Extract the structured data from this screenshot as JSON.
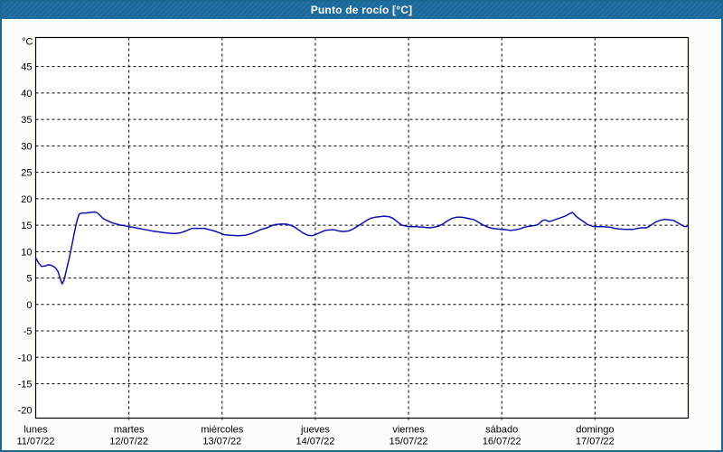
{
  "window": {
    "title": "Punto de rocío [°C]"
  },
  "colors": {
    "titlebar_bg": "#1b699c",
    "titlebar_text": "#ffffff",
    "window_border": "#1d6795",
    "content_bg": "#fbfdf9",
    "plot_bg": "#ffffff",
    "grid": "#000000",
    "axis": "#000000",
    "line": "#0f0fb4"
  },
  "chart_data": {
    "type": "line",
    "title": "Punto de rocío [°C]",
    "xlabel": "",
    "ylabel": "°C",
    "ylim": [
      -21.5,
      50.5
    ],
    "yticks": [
      45,
      40,
      35,
      30,
      25,
      20,
      15,
      10,
      5,
      0,
      -5,
      -10,
      -15,
      -20
    ],
    "yticks_without_gridline": [
      -20
    ],
    "grid": "dashed",
    "legend_position": "none",
    "x_total_hours": 168,
    "x_days": [
      {
        "name": "lunes",
        "date": "11/07/22"
      },
      {
        "name": "martes",
        "date": "12/07/22"
      },
      {
        "name": "miércoles",
        "date": "13/07/22"
      },
      {
        "name": "jueves",
        "date": "14/07/22"
      },
      {
        "name": "viernes",
        "date": "15/07/22"
      },
      {
        "name": "sábado",
        "date": "16/07/22"
      },
      {
        "name": "domingo",
        "date": "17/07/22"
      }
    ],
    "series": [
      {
        "name": "Punto de rocío",
        "color": "#0f0fb4",
        "points_hours_value": [
          [
            0,
            8.8
          ],
          [
            0.7,
            7.9
          ],
          [
            1.5,
            7.2
          ],
          [
            2.5,
            7.3
          ],
          [
            3.2,
            7.5
          ],
          [
            4,
            7.4
          ],
          [
            5,
            7.0
          ],
          [
            5.7,
            6.3
          ],
          [
            6.3,
            4.9
          ],
          [
            6.8,
            3.9
          ],
          [
            7.3,
            4.6
          ],
          [
            8,
            6.8
          ],
          [
            8.7,
            9.0
          ],
          [
            9.4,
            11.5
          ],
          [
            10,
            13.8
          ],
          [
            10.6,
            15.8
          ],
          [
            11.2,
            17.1
          ],
          [
            12,
            17.3
          ],
          [
            13,
            17.3
          ],
          [
            14,
            17.4
          ],
          [
            15,
            17.5
          ],
          [
            15.7,
            17.4
          ],
          [
            16.5,
            16.9
          ],
          [
            17.3,
            16.3
          ],
          [
            18.3,
            15.9
          ],
          [
            19.5,
            15.5
          ],
          [
            20.8,
            15.2
          ],
          [
            22,
            15.0
          ],
          [
            23,
            14.9
          ],
          [
            24,
            14.7
          ],
          [
            25,
            14.6
          ],
          [
            26.5,
            14.4
          ],
          [
            28,
            14.2
          ],
          [
            30,
            13.9
          ],
          [
            32,
            13.7
          ],
          [
            33.8,
            13.5
          ],
          [
            35.5,
            13.4
          ],
          [
            37,
            13.5
          ],
          [
            38.3,
            13.8
          ],
          [
            39.3,
            14.1
          ],
          [
            40.3,
            14.4
          ],
          [
            42,
            14.4
          ],
          [
            43.5,
            14.4
          ],
          [
            44.5,
            14.2
          ],
          [
            46,
            13.9
          ],
          [
            47.5,
            13.5
          ],
          [
            48.5,
            13.2
          ],
          [
            50,
            13.1
          ],
          [
            52,
            13.0
          ],
          [
            54,
            13.1
          ],
          [
            55.5,
            13.4
          ],
          [
            56.5,
            13.7
          ],
          [
            58,
            14.2
          ],
          [
            59.5,
            14.5
          ],
          [
            60.5,
            14.8
          ],
          [
            61.5,
            15.1
          ],
          [
            63,
            15.2
          ],
          [
            64.5,
            15.2
          ],
          [
            65.5,
            15.0
          ],
          [
            66.5,
            14.7
          ],
          [
            67.5,
            14.2
          ],
          [
            68.7,
            13.6
          ],
          [
            70,
            13.1
          ],
          [
            71.2,
            13.0
          ],
          [
            72.3,
            13.3
          ],
          [
            73.5,
            13.7
          ],
          [
            74.5,
            14.0
          ],
          [
            76,
            14.1
          ],
          [
            77,
            14.1
          ],
          [
            78,
            13.9
          ],
          [
            79.3,
            13.8
          ],
          [
            80.5,
            13.9
          ],
          [
            81.5,
            14.2
          ],
          [
            82.7,
            14.7
          ],
          [
            84,
            15.3
          ],
          [
            85,
            15.8
          ],
          [
            86.2,
            16.3
          ],
          [
            87.4,
            16.5
          ],
          [
            88.5,
            16.6
          ],
          [
            89.7,
            16.7
          ],
          [
            91,
            16.6
          ],
          [
            92,
            16.3
          ],
          [
            93.2,
            15.6
          ],
          [
            94.3,
            15.0
          ],
          [
            95.5,
            14.8
          ],
          [
            96.7,
            14.7
          ],
          [
            98,
            14.7
          ],
          [
            100,
            14.6
          ],
          [
            101.3,
            14.5
          ],
          [
            102.5,
            14.6
          ],
          [
            103.7,
            14.8
          ],
          [
            104.8,
            15.2
          ],
          [
            106,
            15.8
          ],
          [
            107.2,
            16.3
          ],
          [
            108.3,
            16.5
          ],
          [
            109.5,
            16.5
          ],
          [
            110.6,
            16.4
          ],
          [
            111.8,
            16.2
          ],
          [
            113,
            16.0
          ],
          [
            114.1,
            15.5
          ],
          [
            115.3,
            15.0
          ],
          [
            116.5,
            14.6
          ],
          [
            117.6,
            14.4
          ],
          [
            118.8,
            14.3
          ],
          [
            120,
            14.2
          ],
          [
            121.2,
            14.1
          ],
          [
            122.3,
            14.0
          ],
          [
            123.5,
            14.1
          ],
          [
            124.6,
            14.3
          ],
          [
            125.8,
            14.6
          ],
          [
            127,
            14.8
          ],
          [
            128.1,
            14.9
          ],
          [
            129.3,
            15.1
          ],
          [
            130.5,
            15.9
          ],
          [
            131.2,
            16.0
          ],
          [
            132.1,
            15.7
          ],
          [
            132.8,
            15.8
          ],
          [
            134,
            16.1
          ],
          [
            135.1,
            16.4
          ],
          [
            136.3,
            16.7
          ],
          [
            137.5,
            17.2
          ],
          [
            138.2,
            17.4
          ],
          [
            139.1,
            16.7
          ],
          [
            139.8,
            16.3
          ],
          [
            141,
            15.7
          ],
          [
            142.1,
            15.1
          ],
          [
            143.3,
            14.8
          ],
          [
            144.5,
            14.7
          ],
          [
            146,
            14.7
          ],
          [
            148,
            14.6
          ],
          [
            149.1,
            14.4
          ],
          [
            150.3,
            14.3
          ],
          [
            152,
            14.2
          ],
          [
            153.8,
            14.2
          ],
          [
            154.9,
            14.4
          ],
          [
            156.1,
            14.5
          ],
          [
            157.3,
            14.5
          ],
          [
            158.4,
            15.0
          ],
          [
            159.6,
            15.6
          ],
          [
            160.7,
            15.9
          ],
          [
            161.9,
            16.1
          ],
          [
            163.1,
            16.0
          ],
          [
            164.2,
            15.9
          ],
          [
            165.4,
            15.4
          ],
          [
            166.6,
            14.9
          ],
          [
            167.3,
            14.7
          ],
          [
            168,
            15.0
          ]
        ]
      }
    ]
  }
}
